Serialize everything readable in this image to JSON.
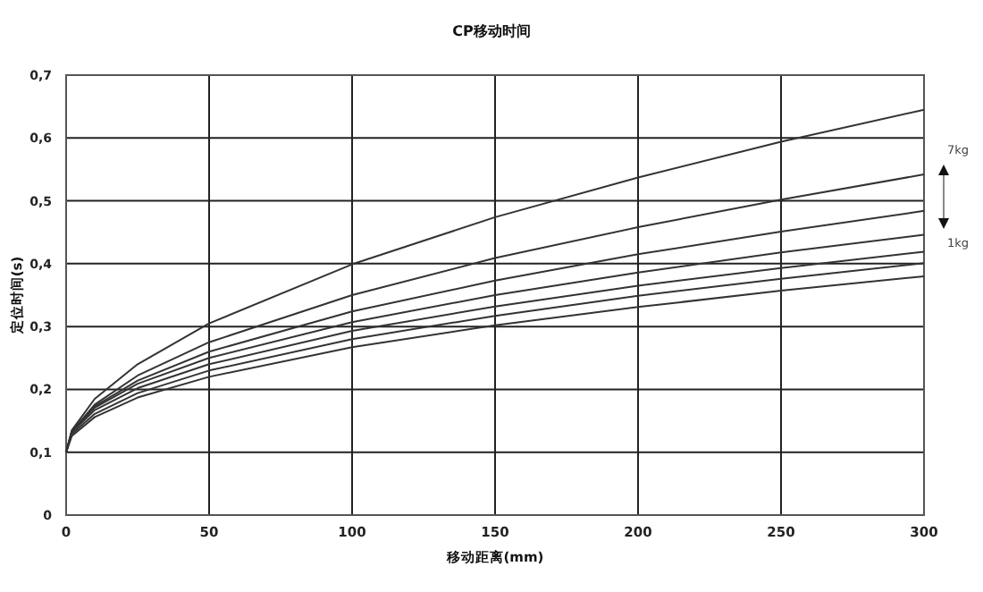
{
  "chart_data": {
    "type": "line",
    "title": "CP移动时间",
    "xlabel": "移动距离(mm)",
    "ylabel": "定位时间(s)",
    "x": [
      0,
      2,
      10,
      25,
      50,
      100,
      150,
      200,
      250,
      300
    ],
    "series": [
      {
        "color": "#333333",
        "values": [
          0.1,
          0.135,
          0.185,
          0.24,
          0.305,
          0.399,
          0.474,
          0.537,
          0.594,
          0.645
        ]
      },
      {
        "color": "#333333",
        "values": [
          0.1,
          0.133,
          0.176,
          0.222,
          0.275,
          0.35,
          0.409,
          0.458,
          0.502,
          0.542
        ]
      },
      {
        "color": "#333333",
        "values": [
          0.1,
          0.133,
          0.173,
          0.214,
          0.26,
          0.324,
          0.373,
          0.415,
          0.451,
          0.484
        ]
      },
      {
        "color": "#333333",
        "values": [
          0.1,
          0.133,
          0.171,
          0.209,
          0.25,
          0.307,
          0.35,
          0.386,
          0.418,
          0.446
        ]
      },
      {
        "color": "#333333",
        "values": [
          0.1,
          0.132,
          0.167,
          0.202,
          0.24,
          0.293,
          0.332,
          0.365,
          0.393,
          0.419
        ]
      },
      {
        "color": "#333333",
        "values": [
          0.1,
          0.129,
          0.161,
          0.194,
          0.23,
          0.28,
          0.317,
          0.349,
          0.376,
          0.401
        ]
      },
      {
        "color": "#333333",
        "values": [
          0.1,
          0.126,
          0.156,
          0.187,
          0.22,
          0.267,
          0.302,
          0.331,
          0.357,
          0.38
        ]
      }
    ],
    "xlim": [
      0,
      300
    ],
    "xticks": [
      0,
      50,
      100,
      150,
      200,
      250,
      300
    ],
    "ylim": [
      0,
      0.7
    ],
    "yticks": [
      0,
      {
        "value": 0.1,
        "label": "0,1"
      },
      {
        "value": 0.2,
        "label": "0,2"
      },
      {
        "value": 0.3,
        "label": "0,3"
      },
      {
        "value": 0.4,
        "label": "0,4"
      },
      {
        "value": 0.5,
        "label": "0,5"
      },
      {
        "value": 0.6,
        "label": "0,6"
      },
      {
        "value": 0.7,
        "label": "0,7"
      }
    ],
    "grid": true,
    "marker": "none",
    "line_style": "solid",
    "annotations": [
      "7kg",
      "1kg"
    ]
  }
}
